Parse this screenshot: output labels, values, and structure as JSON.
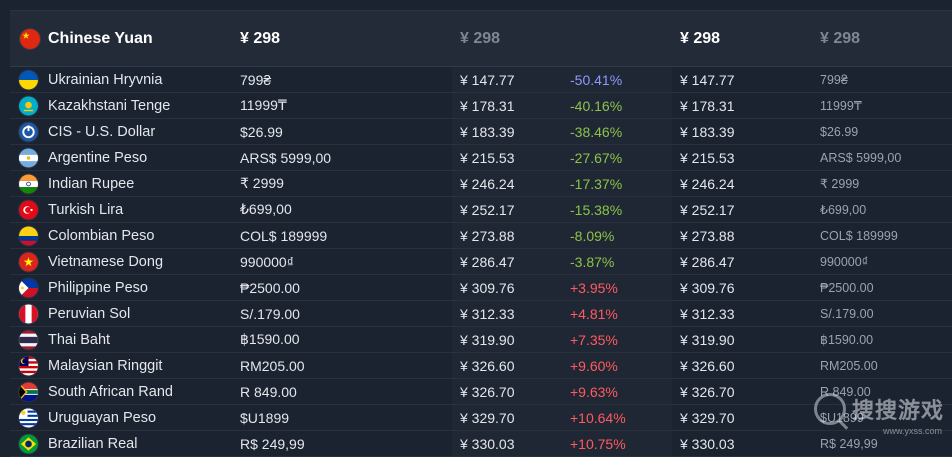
{
  "header": {
    "currency": "Chinese Yuan",
    "local_price": "¥ 298",
    "cny_price": "¥ 298",
    "cny_price2": "¥ 298",
    "local_price2": "¥ 298",
    "flag": "cn-flag-icon"
  },
  "rows": [
    {
      "currency": "Ukrainian Hryvnia",
      "local": "799₴",
      "cny": "¥ 147.77",
      "pct": "-50.41%",
      "pct_type": "neg-strong",
      "cny2": "¥ 147.77",
      "local2": "799₴",
      "flag": "ua"
    },
    {
      "currency": "Kazakhstani Tenge",
      "local": "11999₸",
      "cny": "¥ 178.31",
      "pct": "-40.16%",
      "pct_type": "neg",
      "cny2": "¥ 178.31",
      "local2": "11999₸",
      "flag": "kz"
    },
    {
      "currency": "CIS - U.S. Dollar",
      "local": "$26.99",
      "cny": "¥ 183.39",
      "pct": "-38.46%",
      "pct_type": "neg",
      "cny2": "¥ 183.39",
      "local2": "$26.99",
      "flag": "cis"
    },
    {
      "currency": "Argentine Peso",
      "local": "ARS$ 5999,00",
      "cny": "¥ 215.53",
      "pct": "-27.67%",
      "pct_type": "neg",
      "cny2": "¥ 215.53",
      "local2": "ARS$ 5999,00",
      "flag": "ar"
    },
    {
      "currency": "Indian Rupee",
      "local": "₹ 2999",
      "cny": "¥ 246.24",
      "pct": "-17.37%",
      "pct_type": "neg",
      "cny2": "¥ 246.24",
      "local2": "₹ 2999",
      "flag": "in"
    },
    {
      "currency": "Turkish Lira",
      "local": "₺699,00",
      "cny": "¥ 252.17",
      "pct": "-15.38%",
      "pct_type": "neg",
      "cny2": "¥ 252.17",
      "local2": "₺699,00",
      "flag": "tr"
    },
    {
      "currency": "Colombian Peso",
      "local": "COL$ 189999",
      "cny": "¥ 273.88",
      "pct": "-8.09%",
      "pct_type": "neg",
      "cny2": "¥ 273.88",
      "local2": "COL$ 189999",
      "flag": "co"
    },
    {
      "currency": "Vietnamese Dong",
      "local": "990000₫",
      "cny": "¥ 286.47",
      "pct": "-3.87%",
      "pct_type": "neg",
      "cny2": "¥ 286.47",
      "local2": "990000₫",
      "flag": "vn"
    },
    {
      "currency": "Philippine Peso",
      "local": "₱2500.00",
      "cny": "¥ 309.76",
      "pct": "+3.95%",
      "pct_type": "pos",
      "cny2": "¥ 309.76",
      "local2": "₱2500.00",
      "flag": "ph"
    },
    {
      "currency": "Peruvian Sol",
      "local": "S/.179.00",
      "cny": "¥ 312.33",
      "pct": "+4.81%",
      "pct_type": "pos",
      "cny2": "¥ 312.33",
      "local2": "S/.179.00",
      "flag": "pe"
    },
    {
      "currency": "Thai Baht",
      "local": "฿1590.00",
      "cny": "¥ 319.90",
      "pct": "+7.35%",
      "pct_type": "pos",
      "cny2": "¥ 319.90",
      "local2": "฿1590.00",
      "flag": "th"
    },
    {
      "currency": "Malaysian Ringgit",
      "local": "RM205.00",
      "cny": "¥ 326.60",
      "pct": "+9.60%",
      "pct_type": "pos",
      "cny2": "¥ 326.60",
      "local2": "RM205.00",
      "flag": "my"
    },
    {
      "currency": "South African Rand",
      "local": "R 849.00",
      "cny": "¥ 326.70",
      "pct": "+9.63%",
      "pct_type": "pos",
      "cny2": "¥ 326.70",
      "local2": "R 849.00",
      "flag": "za"
    },
    {
      "currency": "Uruguayan Peso",
      "local": "$U1899",
      "cny": "¥ 329.70",
      "pct": "+10.64%",
      "pct_type": "pos",
      "cny2": "¥ 329.70",
      "local2": "$U1899",
      "flag": "uy"
    },
    {
      "currency": "Brazilian Real",
      "local": "R$ 249,99",
      "cny": "¥ 330.03",
      "pct": "+10.75%",
      "pct_type": "pos",
      "cny2": "¥ 330.03",
      "local2": "R$ 249,99",
      "flag": "br"
    }
  ],
  "watermark": {
    "text": "搜搜游戏",
    "url": "www.yxss.com"
  },
  "colors": {
    "background": "#1b2230",
    "negative": "#8bc34a",
    "negative_strong": "#8f98ff",
    "positive": "#ff5a5f"
  }
}
